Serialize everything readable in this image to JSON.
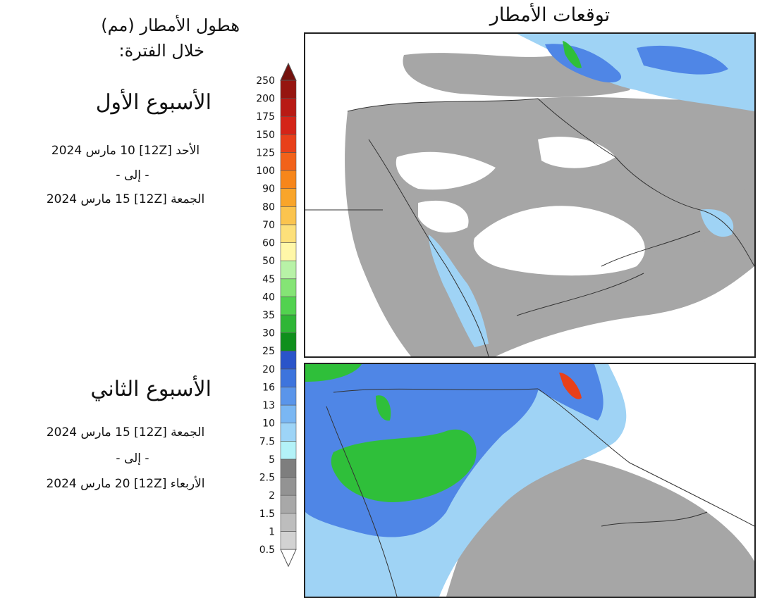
{
  "title": "توقعات الأمطار",
  "legend": {
    "title": "هطول الأمطار (مم)",
    "subtitle": "خلال الفترة:",
    "levels": [
      {
        "label": "0.5",
        "color": "#d2d2d2"
      },
      {
        "label": "1",
        "color": "#bdbdbd"
      },
      {
        "label": "1.5",
        "color": "#a8a8a8"
      },
      {
        "label": "2",
        "color": "#939393"
      },
      {
        "label": "2.5",
        "color": "#7e7e7e"
      },
      {
        "label": "5",
        "color": "#b3f2f8"
      },
      {
        "label": "7.5",
        "color": "#9dd4f7"
      },
      {
        "label": "10",
        "color": "#7ab7f3"
      },
      {
        "label": "13",
        "color": "#5a95ea"
      },
      {
        "label": "16",
        "color": "#3d74dd"
      },
      {
        "label": "20",
        "color": "#2a54c9"
      },
      {
        "label": "25",
        "color": "#0f8f1c"
      },
      {
        "label": "30",
        "color": "#2fb636"
      },
      {
        "label": "35",
        "color": "#52d24f"
      },
      {
        "label": "40",
        "color": "#85e475"
      },
      {
        "label": "45",
        "color": "#b8f2a7"
      },
      {
        "label": "50",
        "color": "#fff7a8"
      },
      {
        "label": "60",
        "color": "#fde07a"
      },
      {
        "label": "70",
        "color": "#fbc44e"
      },
      {
        "label": "80",
        "color": "#f9a52a"
      },
      {
        "label": "90",
        "color": "#f7861a"
      },
      {
        "label": "100",
        "color": "#f2621a"
      },
      {
        "label": "125",
        "color": "#e8401a"
      },
      {
        "label": "150",
        "color": "#d42418"
      },
      {
        "label": "175",
        "color": "#b81a14"
      },
      {
        "label": "200",
        "color": "#961510"
      },
      {
        "label": "250",
        "color": "#74120e"
      }
    ]
  },
  "week1": {
    "title": "الأسبوع الأول",
    "start": "الأحد [12Z] 10 مارس 2024",
    "separator": "- إلى -",
    "end": "الجمعة [12Z] 15 مارس 2024"
  },
  "week2": {
    "title": "الأسبوع الثاني",
    "start": "الجمعة [12Z] 15 مارس 2024",
    "separator": "- إلى -",
    "end": "الأربعاء [12Z] 20 مارس 2024"
  },
  "colors": {
    "land": "#ffffff",
    "trace": "#a6a6a6",
    "light": "#9fd3f5",
    "medium": "#4f86e6",
    "heavy": "#2fbf3a",
    "very_heavy": "#e8401a",
    "border": "#333333"
  }
}
